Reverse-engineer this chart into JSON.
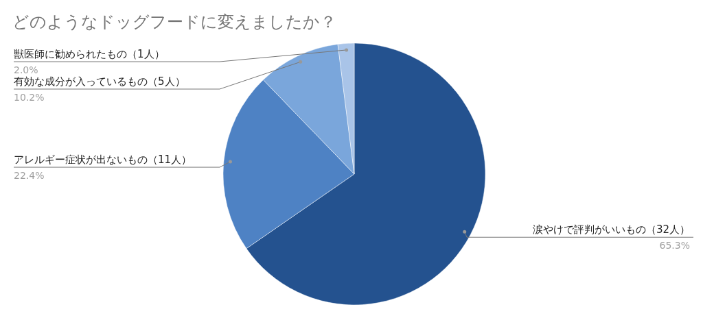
{
  "chart_data": {
    "type": "pie",
    "title": "どのようなドッグフードに変えましたか？",
    "categories": [
      "涙やけで評判がいいもの（32人）",
      "アレルギー症状が出ないもの（11人）",
      "有効な成分が入っているもの（5人）",
      "獣医師に勧められたもの（1人）"
    ],
    "values": [
      65.3,
      22.4,
      10.2,
      2.0
    ],
    "colors": [
      "#24528f",
      "#4e82c4",
      "#7aa6db",
      "#a9c4e8"
    ],
    "value_labels": [
      "65.3%",
      "22.4%",
      "10.2%",
      "2.0%"
    ]
  }
}
